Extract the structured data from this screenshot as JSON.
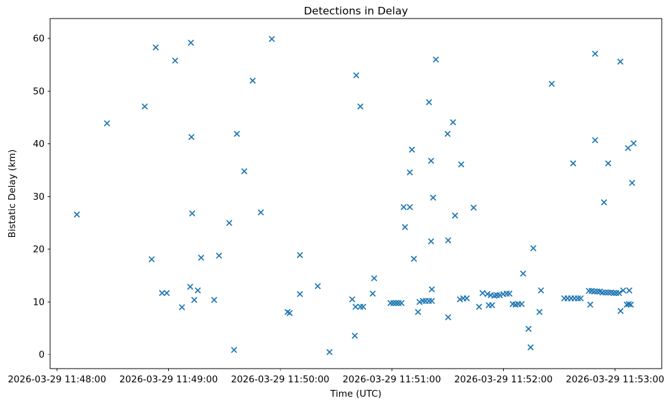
{
  "chart_data": {
    "type": "scatter",
    "title": "Detections in Delay",
    "xlabel": "Time (UTC)",
    "ylabel": "Bistatic Delay (km)",
    "legend": null,
    "grid": false,
    "marker": "x",
    "marker_color": "#1f77b4",
    "spine_color": "#000000",
    "x_unit": "seconds after 2026-03-29 11:48:00 UTC",
    "x_tick_seconds": [
      0,
      60,
      120,
      180,
      240,
      300
    ],
    "x_tick_labels": [
      "2026-03-29 11:48:00",
      "2026-03-29 11:49:00",
      "2026-03-29 11:50:00",
      "2026-03-29 11:51:00",
      "2026-03-29 11:52:00",
      "2026-03-29 11:53:00"
    ],
    "y_ticks": [
      0,
      10,
      20,
      30,
      40,
      50,
      60
    ],
    "y_tick_labels": [
      "0",
      "10",
      "20",
      "30",
      "40",
      "50",
      "60"
    ],
    "xlim_seconds": [
      -3.7,
      325.1
    ],
    "ylim": [
      -2.64,
      63.78
    ],
    "points": [
      [
        10.7,
        26.6
      ],
      [
        26.9,
        43.9
      ],
      [
        47.2,
        47.1
      ],
      [
        50.9,
        18.1
      ],
      [
        53.1,
        58.3
      ],
      [
        56.5,
        11.7
      ],
      [
        59.0,
        11.7
      ],
      [
        63.5,
        55.8
      ],
      [
        67.2,
        9.0
      ],
      [
        71.6,
        12.9
      ],
      [
        72.0,
        59.2
      ],
      [
        72.3,
        41.3
      ],
      [
        72.7,
        26.8
      ],
      [
        73.8,
        10.4
      ],
      [
        75.7,
        12.2
      ],
      [
        77.5,
        18.4
      ],
      [
        84.5,
        10.4
      ],
      [
        87.1,
        18.8
      ],
      [
        92.6,
        25.0
      ],
      [
        95.2,
        0.9
      ],
      [
        96.7,
        41.9
      ],
      [
        100.7,
        34.8
      ],
      [
        105.2,
        52.0
      ],
      [
        109.6,
        27.0
      ],
      [
        115.5,
        59.9
      ],
      [
        124.0,
        8.1
      ],
      [
        125.1,
        7.9
      ],
      [
        130.6,
        18.9
      ],
      [
        130.6,
        11.5
      ],
      [
        140.2,
        13.0
      ],
      [
        146.5,
        0.5
      ],
      [
        158.7,
        10.5
      ],
      [
        160.1,
        3.6
      ],
      [
        160.5,
        9.1
      ],
      [
        160.9,
        53.0
      ],
      [
        163.1,
        47.1
      ],
      [
        163.1,
        9.1
      ],
      [
        164.6,
        9.1
      ],
      [
        169.7,
        11.6
      ],
      [
        170.5,
        14.5
      ],
      [
        179.3,
        9.8
      ],
      [
        180.8,
        9.8
      ],
      [
        182.3,
        9.8
      ],
      [
        183.7,
        9.8
      ],
      [
        185.2,
        9.8
      ],
      [
        186.4,
        28.0
      ],
      [
        187.1,
        24.2
      ],
      [
        189.7,
        34.6
      ],
      [
        189.7,
        28.0
      ],
      [
        190.8,
        38.9
      ],
      [
        191.9,
        18.2
      ],
      [
        194.1,
        8.1
      ],
      [
        194.9,
        10.0
      ],
      [
        196.7,
        10.2
      ],
      [
        198.2,
        10.2
      ],
      [
        200.0,
        47.9
      ],
      [
        200.0,
        10.2
      ],
      [
        201.1,
        36.8
      ],
      [
        201.1,
        21.5
      ],
      [
        201.5,
        12.4
      ],
      [
        201.5,
        10.2
      ],
      [
        202.2,
        29.8
      ],
      [
        203.7,
        56.0
      ],
      [
        210.0,
        41.9
      ],
      [
        210.3,
        21.7
      ],
      [
        210.3,
        7.1
      ],
      [
        212.9,
        44.1
      ],
      [
        214.0,
        26.4
      ],
      [
        216.6,
        10.5
      ],
      [
        217.3,
        36.1
      ],
      [
        218.4,
        10.7
      ],
      [
        220.3,
        10.7
      ],
      [
        224.0,
        27.9
      ],
      [
        226.9,
        9.1
      ],
      [
        228.8,
        11.7
      ],
      [
        231.4,
        11.5
      ],
      [
        232.1,
        9.4
      ],
      [
        233.2,
        11.3
      ],
      [
        233.9,
        9.4
      ],
      [
        235.1,
        11.2
      ],
      [
        236.5,
        11.3
      ],
      [
        238.0,
        11.3
      ],
      [
        239.9,
        11.5
      ],
      [
        241.7,
        11.6
      ],
      [
        243.2,
        11.6
      ],
      [
        245.0,
        9.6
      ],
      [
        246.5,
        9.5
      ],
      [
        248.0,
        9.6
      ],
      [
        249.8,
        9.6
      ],
      [
        250.6,
        15.4
      ],
      [
        253.5,
        4.9
      ],
      [
        254.6,
        1.4
      ],
      [
        256.1,
        20.2
      ],
      [
        259.4,
        8.1
      ],
      [
        260.2,
        12.2
      ],
      [
        266.0,
        51.4
      ],
      [
        272.7,
        10.7
      ],
      [
        274.5,
        10.7
      ],
      [
        276.4,
        10.7
      ],
      [
        277.5,
        36.3
      ],
      [
        278.2,
        10.7
      ],
      [
        280.0,
        10.7
      ],
      [
        281.5,
        10.7
      ],
      [
        285.9,
        12.1
      ],
      [
        286.7,
        9.5
      ],
      [
        287.4,
        12.1
      ],
      [
        288.9,
        12.0
      ],
      [
        289.3,
        57.1
      ],
      [
        289.3,
        40.7
      ],
      [
        290.4,
        12.0
      ],
      [
        291.8,
        12.0
      ],
      [
        293.3,
        11.8
      ],
      [
        294.1,
        28.9
      ],
      [
        294.8,
        11.8
      ],
      [
        296.3,
        36.3
      ],
      [
        296.3,
        11.8
      ],
      [
        297.8,
        11.8
      ],
      [
        299.3,
        11.7
      ],
      [
        300.7,
        11.7
      ],
      [
        302.2,
        11.7
      ],
      [
        302.9,
        55.6
      ],
      [
        303.0,
        8.3
      ],
      [
        304.4,
        12.2
      ],
      [
        306.3,
        9.5
      ],
      [
        307.0,
        39.2
      ],
      [
        307.4,
        9.6
      ],
      [
        307.7,
        12.2
      ],
      [
        308.5,
        9.5
      ],
      [
        309.2,
        32.6
      ],
      [
        310.0,
        40.1
      ]
    ]
  }
}
